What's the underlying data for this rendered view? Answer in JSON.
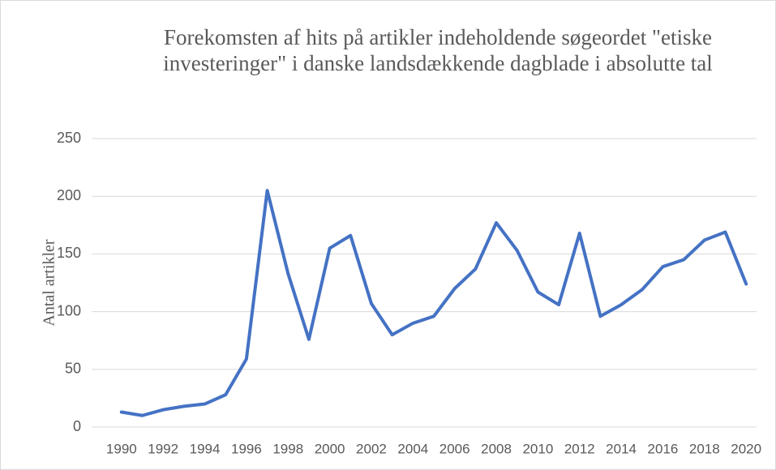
{
  "chart_data": {
    "type": "line",
    "title": "Forekomsten af hits på artikler indeholdende søgeordet \"etiske investeringer\" i danske landsdækkende dagblade i absolutte tal",
    "y_label": "Antal artikler",
    "categories": [
      "1990",
      null,
      "1992",
      null,
      "1994",
      null,
      "1996",
      null,
      "1998",
      null,
      "2000",
      null,
      "2002",
      null,
      "2004",
      null,
      "2006",
      null,
      "2008",
      null,
      "2010",
      null,
      "2012",
      null,
      "2014",
      null,
      "2016",
      null,
      "2018",
      null,
      "2020"
    ],
    "series": [
      {
        "name": "Antal artikler",
        "color": "#4472c4",
        "values": [
          13,
          10,
          15,
          18,
          20,
          28,
          59,
          205,
          133,
          76,
          155,
          166,
          107,
          80,
          90,
          96,
          120,
          137,
          177,
          153,
          117,
          106,
          168,
          96,
          106,
          119,
          139,
          145,
          162,
          169,
          124
        ]
      }
    ],
    "ylim": [
      0,
      250
    ],
    "yticks": [
      0,
      50,
      100,
      150,
      200,
      250
    ],
    "grid": true
  }
}
